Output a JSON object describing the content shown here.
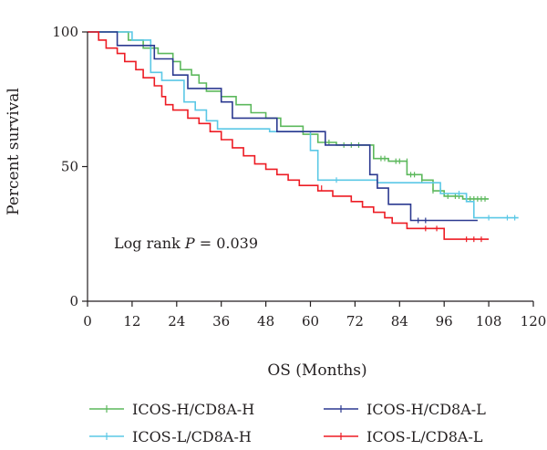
{
  "chart_data": {
    "type": "line",
    "ylabel": "Percent survival",
    "xlabel": "OS (Months)",
    "annotation": {
      "prefix": "Log rank ",
      "italic": "P",
      "suffix": " = 0.039"
    },
    "xlim": [
      0,
      120
    ],
    "ylim": [
      0,
      100
    ],
    "xticks": [
      0,
      12,
      24,
      36,
      48,
      60,
      72,
      84,
      96,
      108,
      120
    ],
    "yticks": [
      0,
      50,
      100
    ],
    "grid": false,
    "legend_position": "bottom",
    "series": [
      {
        "name": "ICOS-H/CD8A-H",
        "color": "#5cb85c",
        "steps": [
          [
            0,
            100
          ],
          [
            11,
            100
          ],
          [
            11,
            97
          ],
          [
            15,
            97
          ],
          [
            15,
            94
          ],
          [
            19,
            94
          ],
          [
            19,
            92
          ],
          [
            23,
            92
          ],
          [
            23,
            89
          ],
          [
            25,
            89
          ],
          [
            25,
            86
          ],
          [
            28,
            86
          ],
          [
            28,
            84
          ],
          [
            30,
            84
          ],
          [
            30,
            81
          ],
          [
            32,
            81
          ],
          [
            32,
            78
          ],
          [
            36,
            78
          ],
          [
            36,
            76
          ],
          [
            40,
            76
          ],
          [
            40,
            73
          ],
          [
            44,
            73
          ],
          [
            44,
            70
          ],
          [
            48,
            70
          ],
          [
            48,
            68
          ],
          [
            52,
            68
          ],
          [
            52,
            65
          ],
          [
            58,
            65
          ],
          [
            58,
            62
          ],
          [
            62,
            62
          ],
          [
            62,
            59
          ],
          [
            67,
            59
          ],
          [
            67,
            58
          ],
          [
            77,
            58
          ],
          [
            77,
            53
          ],
          [
            81,
            53
          ],
          [
            81,
            52
          ],
          [
            86,
            52
          ],
          [
            86,
            47
          ],
          [
            90,
            47
          ],
          [
            90,
            45
          ],
          [
            93,
            45
          ],
          [
            93,
            41
          ],
          [
            96,
            41
          ],
          [
            96,
            39
          ],
          [
            101,
            39
          ],
          [
            101,
            38
          ],
          [
            108,
            38
          ]
        ],
        "censors": [
          [
            65,
            59
          ],
          [
            69,
            58
          ],
          [
            71,
            58
          ],
          [
            73,
            58
          ],
          [
            79,
            53
          ],
          [
            80,
            53
          ],
          [
            83,
            52
          ],
          [
            84,
            52
          ],
          [
            86,
            52
          ],
          [
            87,
            47
          ],
          [
            88,
            47
          ],
          [
            90,
            45
          ],
          [
            93,
            41
          ],
          [
            95,
            41
          ],
          [
            97,
            39
          ],
          [
            99,
            39
          ],
          [
            100,
            39
          ],
          [
            102,
            38
          ],
          [
            103,
            38
          ],
          [
            104,
            38
          ],
          [
            105,
            38
          ],
          [
            106,
            38
          ],
          [
            107,
            38
          ]
        ]
      },
      {
        "name": "ICOS-L/CD8A-H",
        "color": "#5bc8e6",
        "steps": [
          [
            0,
            100
          ],
          [
            12,
            100
          ],
          [
            12,
            97
          ],
          [
            17,
            97
          ],
          [
            17,
            85
          ],
          [
            20,
            85
          ],
          [
            20,
            82
          ],
          [
            26,
            82
          ],
          [
            26,
            74
          ],
          [
            29,
            74
          ],
          [
            29,
            71
          ],
          [
            32,
            71
          ],
          [
            32,
            67
          ],
          [
            35,
            67
          ],
          [
            35,
            64
          ],
          [
            49,
            64
          ],
          [
            49,
            63
          ],
          [
            60,
            63
          ],
          [
            60,
            56
          ],
          [
            62,
            56
          ],
          [
            62,
            45
          ],
          [
            78,
            45
          ],
          [
            78,
            44
          ],
          [
            95,
            44
          ],
          [
            95,
            40
          ],
          [
            102,
            40
          ],
          [
            102,
            37
          ],
          [
            104,
            37
          ],
          [
            104,
            31
          ],
          [
            116,
            31
          ]
        ],
        "censors": [
          [
            67,
            45
          ],
          [
            100,
            40
          ],
          [
            102,
            39
          ],
          [
            108,
            31
          ],
          [
            113,
            31
          ],
          [
            115,
            31
          ]
        ]
      },
      {
        "name": "ICOS-H/CD8A-L",
        "color": "#2b3990",
        "steps": [
          [
            0,
            100
          ],
          [
            8,
            100
          ],
          [
            8,
            95
          ],
          [
            18,
            95
          ],
          [
            18,
            90
          ],
          [
            23,
            90
          ],
          [
            23,
            84
          ],
          [
            27,
            84
          ],
          [
            27,
            79
          ],
          [
            36,
            79
          ],
          [
            36,
            74
          ],
          [
            39,
            74
          ],
          [
            39,
            68
          ],
          [
            51,
            68
          ],
          [
            51,
            63
          ],
          [
            64,
            63
          ],
          [
            64,
            58
          ],
          [
            76,
            58
          ],
          [
            76,
            47
          ],
          [
            78,
            47
          ],
          [
            78,
            42
          ],
          [
            81,
            42
          ],
          [
            81,
            36
          ],
          [
            87,
            36
          ],
          [
            87,
            30
          ],
          [
            105,
            30
          ]
        ],
        "censors": [
          [
            89,
            30
          ],
          [
            91,
            30
          ]
        ]
      },
      {
        "name": "ICOS-L/CD8A-L",
        "color": "#ed1c24",
        "steps": [
          [
            0,
            100
          ],
          [
            3,
            100
          ],
          [
            3,
            97
          ],
          [
            5,
            97
          ],
          [
            5,
            94
          ],
          [
            8,
            94
          ],
          [
            8,
            92
          ],
          [
            10,
            92
          ],
          [
            10,
            89
          ],
          [
            13,
            89
          ],
          [
            13,
            86
          ],
          [
            15,
            86
          ],
          [
            15,
            83
          ],
          [
            18,
            83
          ],
          [
            18,
            80
          ],
          [
            20,
            80
          ],
          [
            20,
            76
          ],
          [
            21,
            76
          ],
          [
            21,
            73
          ],
          [
            23,
            73
          ],
          [
            23,
            71
          ],
          [
            27,
            71
          ],
          [
            27,
            68
          ],
          [
            30,
            68
          ],
          [
            30,
            66
          ],
          [
            33,
            66
          ],
          [
            33,
            63
          ],
          [
            36,
            63
          ],
          [
            36,
            60
          ],
          [
            39,
            60
          ],
          [
            39,
            57
          ],
          [
            42,
            57
          ],
          [
            42,
            54
          ],
          [
            45,
            54
          ],
          [
            45,
            51
          ],
          [
            48,
            51
          ],
          [
            48,
            49
          ],
          [
            51,
            49
          ],
          [
            51,
            47
          ],
          [
            54,
            47
          ],
          [
            54,
            45
          ],
          [
            57,
            45
          ],
          [
            57,
            43
          ],
          [
            62,
            43
          ],
          [
            62,
            41
          ],
          [
            66,
            41
          ],
          [
            66,
            39
          ],
          [
            71,
            39
          ],
          [
            71,
            37
          ],
          [
            74,
            37
          ],
          [
            74,
            35
          ],
          [
            77,
            35
          ],
          [
            77,
            33
          ],
          [
            80,
            33
          ],
          [
            80,
            31
          ],
          [
            82,
            31
          ],
          [
            82,
            29
          ],
          [
            86,
            29
          ],
          [
            86,
            27
          ],
          [
            96,
            27
          ],
          [
            96,
            23
          ],
          [
            108,
            23
          ]
        ],
        "censors": [
          [
            63,
            42
          ],
          [
            91,
            27
          ],
          [
            94,
            27
          ],
          [
            102,
            23
          ],
          [
            104,
            23
          ],
          [
            106,
            23
          ]
        ]
      }
    ],
    "legend_layout": [
      {
        "series": "ICOS-H/CD8A-H",
        "column": 0,
        "row": 0
      },
      {
        "series": "ICOS-H/CD8A-L",
        "column": 1,
        "row": 0
      },
      {
        "series": "ICOS-L/CD8A-H",
        "column": 0,
        "row": 1
      },
      {
        "series": "ICOS-L/CD8A-L",
        "column": 1,
        "row": 1
      }
    ]
  }
}
